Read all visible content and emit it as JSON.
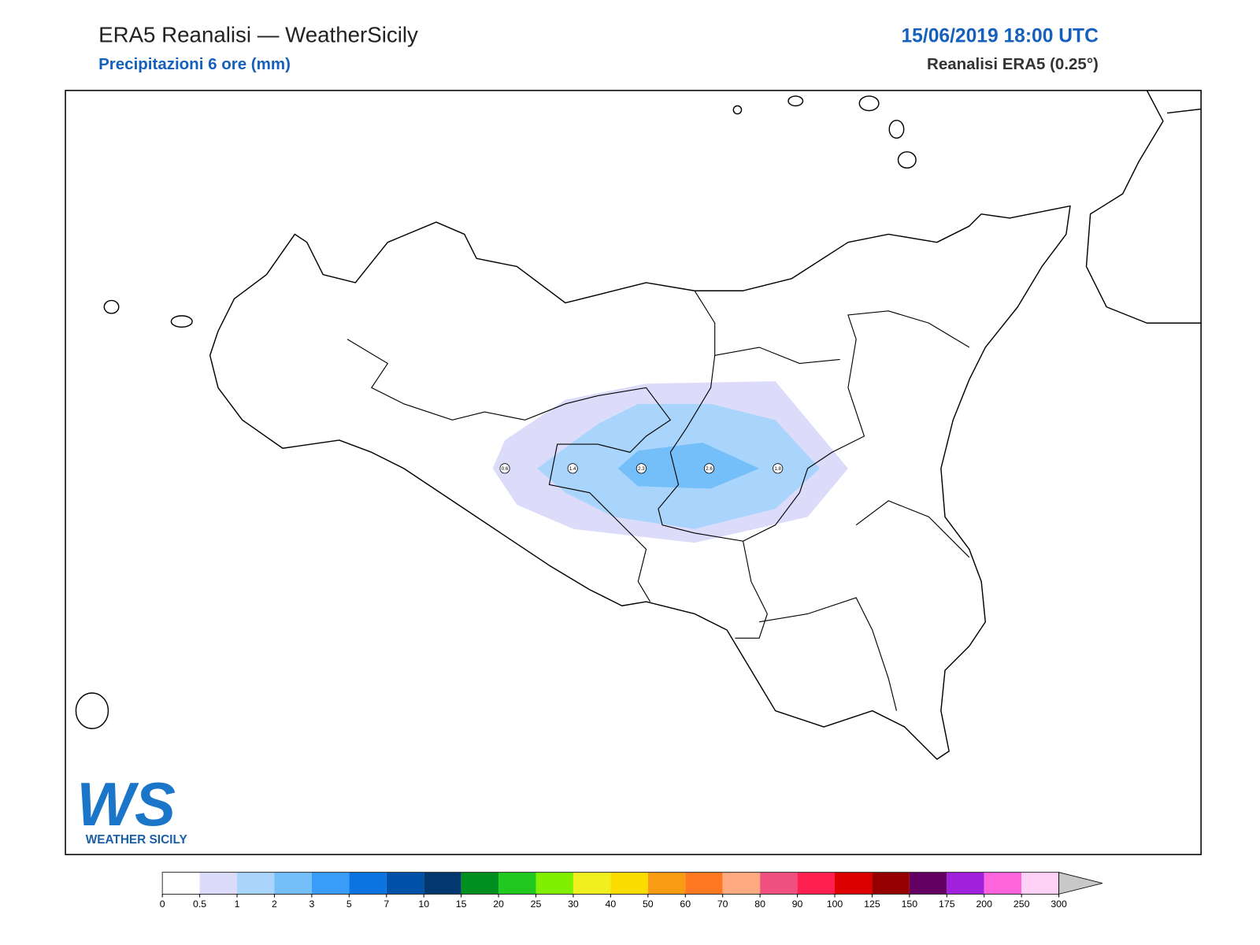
{
  "header": {
    "title": "ERA5 Reanalisi — WeatherSicily",
    "subtitle": "Precipitazioni 6 ore (mm)",
    "datetime": "15/06/2019 18:00 UTC",
    "source": "Reanalisi ERA5 (0.25°)"
  },
  "points": [
    {
      "value": 0.6
    },
    {
      "value": 1.4
    },
    {
      "value": 2.3
    },
    {
      "value": 2.6
    },
    {
      "value": 1.8
    }
  ],
  "logo": {
    "mark": "WS",
    "name": "WEATHER SICILY"
  },
  "colorbar": {
    "bounds": [
      0,
      0.5,
      1,
      2,
      3,
      5,
      7,
      10,
      15,
      20,
      25,
      30,
      40,
      50,
      60,
      70,
      80,
      90,
      100,
      125,
      150,
      175,
      200,
      250,
      300
    ],
    "colors": [
      "#ffffff",
      "#dcdcfa",
      "#a9d5fd",
      "#74bff9",
      "#3a9cf9",
      "#0b74e0",
      "#0052a8",
      "#00386f",
      "#009020",
      "#20c820",
      "#80f000",
      "#f0f020",
      "#fadc00",
      "#fa9b14",
      "#ff7820",
      "#ffaa80",
      "#f05080",
      "#ff2050",
      "#dc0000",
      "#960000",
      "#640064",
      "#a020dc",
      "#ff64dc",
      "#ffd2f5"
    ],
    "extend_color": "#c8c8c8"
  }
}
